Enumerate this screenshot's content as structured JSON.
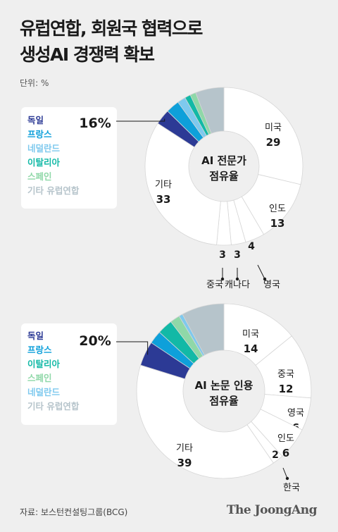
{
  "title": {
    "line1": "유럽연합, 회원국 협력으로",
    "line2": "생성AI 경쟁력 확보"
  },
  "unit": "단위: %",
  "source": "자료: 보스턴컨설팅그룹(BCG)",
  "brand": "The JoongAng",
  "colors": {
    "독일": "#2c3a95",
    "프랑스": "#0ea0da",
    "네덜란드": "#7ec9ee",
    "이탈리아": "#12b9a6",
    "스페인": "#8fd8a8",
    "기타 유럽연합": "#b6c4cb",
    "other": "#ffffff"
  },
  "chart_data": [
    {
      "type": "pie",
      "center_label": [
        "AI 전문가",
        "점유율"
      ],
      "eu_total_label": "16%",
      "legend": [
        "독일",
        "프랑스",
        "네덜란드",
        "이탈리아",
        "스페인",
        "기타 유럽연합"
      ],
      "slices": [
        {
          "name": "미국",
          "value": 29
        },
        {
          "name": "인도",
          "value": 13
        },
        {
          "name": "영국",
          "value": 4
        },
        {
          "name": "캐나다",
          "value": 3
        },
        {
          "name": "중국",
          "value": 3
        },
        {
          "name": "기타",
          "value": 33
        },
        {
          "name": "독일",
          "value": 3.2
        },
        {
          "name": "프랑스",
          "value": 2.8
        },
        {
          "name": "네덜란드",
          "value": 1.7
        },
        {
          "name": "이탈리아",
          "value": 1.2
        },
        {
          "name": "스페인",
          "value": 1.2
        },
        {
          "name": "기타 유럽연합",
          "value": 5.9
        }
      ]
    },
    {
      "type": "pie",
      "center_label": [
        "AI 논문 인용",
        "점유율"
      ],
      "eu_total_label": "20%",
      "legend": [
        "독일",
        "프랑스",
        "이탈리아",
        "스페인",
        "네덜란드",
        "기타 유럽연합"
      ],
      "slices": [
        {
          "name": "미국",
          "value": 14
        },
        {
          "name": "중국",
          "value": 12
        },
        {
          "name": "영국",
          "value": 6
        },
        {
          "name": "인도",
          "value": 6
        },
        {
          "name": "한국",
          "value": 2
        },
        {
          "name": "기타",
          "value": 39
        },
        {
          "name": "독일",
          "value": 4.5
        },
        {
          "name": "프랑스",
          "value": 2.4
        },
        {
          "name": "이탈리아",
          "value": 2.8
        },
        {
          "name": "스페인",
          "value": 1.8
        },
        {
          "name": "네덜란드",
          "value": 0.7
        },
        {
          "name": "기타 유럽연합",
          "value": 7.8
        }
      ]
    }
  ]
}
